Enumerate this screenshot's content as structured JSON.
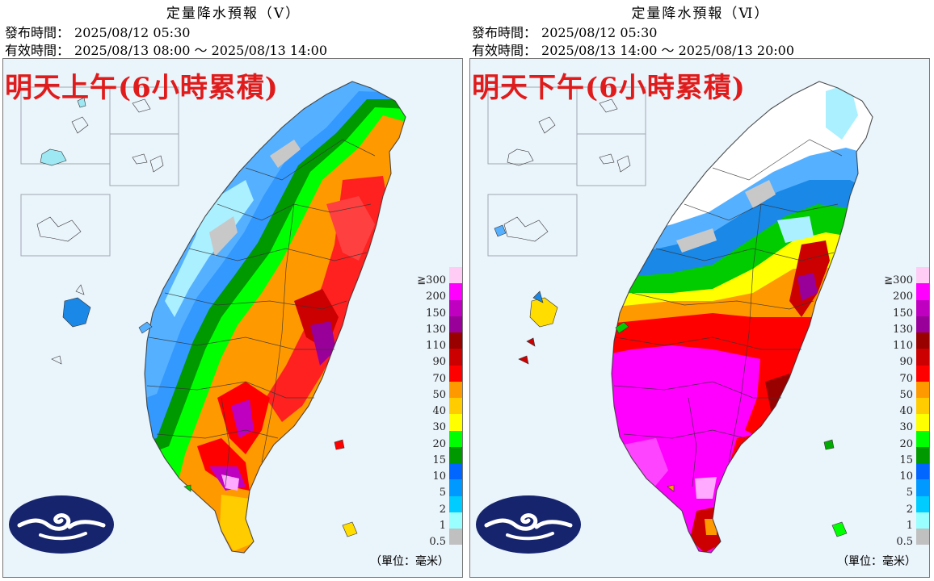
{
  "panels": [
    {
      "title": "定量降水預報（Ⅴ）",
      "issue_label": "發布時間：",
      "issue_time": "2025/08/12 05:30",
      "valid_label": "有效時間：",
      "valid_time": "2025/08/13 08:00 ～ 2025/08/13 14:00",
      "headline": "明天上午(6小時累積)"
    },
    {
      "title": "定量降水預報（Ⅵ）",
      "issue_label": "發布時間：",
      "issue_time": "2025/08/12 05:30",
      "valid_label": "有效時間：",
      "valid_time": "2025/08/13 14:00 ～ 2025/08/13 20:00",
      "headline": "明天下午(6小時累積)"
    }
  ],
  "legend": {
    "levels": [
      {
        "label": "≧300",
        "color": "#ffccf6"
      },
      {
        "label": "200",
        "color": "#ff00ff"
      },
      {
        "label": "150",
        "color": "#c000c0"
      },
      {
        "label": "130",
        "color": "#990099"
      },
      {
        "label": "110",
        "color": "#990000"
      },
      {
        "label": "90",
        "color": "#cc0000"
      },
      {
        "label": "70",
        "color": "#ff0000"
      },
      {
        "label": "50",
        "color": "#ff9900"
      },
      {
        "label": "40",
        "color": "#ffcc00"
      },
      {
        "label": "30",
        "color": "#ffff00"
      },
      {
        "label": "20",
        "color": "#00ff00"
      },
      {
        "label": "15",
        "color": "#009900"
      },
      {
        "label": "10",
        "color": "#0066ff"
      },
      {
        "label": "5",
        "color": "#0099ff"
      },
      {
        "label": "2",
        "color": "#00ccff"
      },
      {
        "label": "1",
        "color": "#99ffff"
      },
      {
        "label": "0.5",
        "color": "#c0c0c0"
      }
    ],
    "unit": "（單位：毫米）"
  }
}
